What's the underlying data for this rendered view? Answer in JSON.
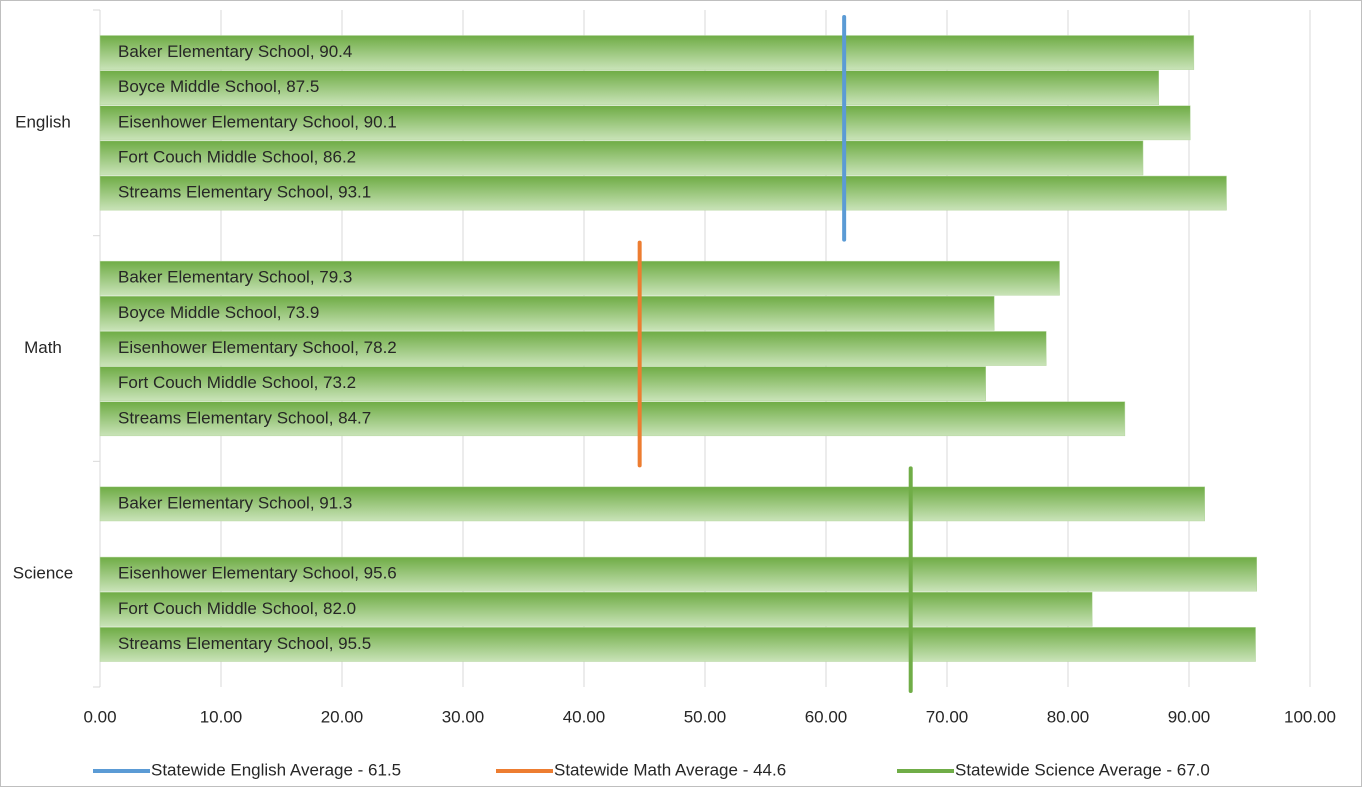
{
  "chart_data": {
    "type": "bar",
    "orientation": "horizontal",
    "categories": [
      "English",
      "Math",
      "Science"
    ],
    "series": [
      {
        "color": "#70ad47",
        "values": [
          90.4,
          79.3,
          91.3
        ],
        "value_labels": [
          "Baker Elementary School, 90.4",
          "Baker Elementary School, 79.3",
          "Baker Elementary School, 91.3"
        ]
      },
      {
        "color": "#70ad47",
        "values": [
          87.5,
          73.9,
          null
        ],
        "value_labels": [
          "Boyce Middle School, 87.5",
          "Boyce Middle School, 73.9",
          null
        ]
      },
      {
        "color": "#70ad47",
        "values": [
          90.1,
          78.2,
          95.6
        ],
        "value_labels": [
          "Eisenhower Elementary School, 90.1",
          "Eisenhower Elementary School, 78.2",
          "Eisenhower Elementary School, 95.6"
        ]
      },
      {
        "color": "#70ad47",
        "values": [
          86.2,
          73.2,
          82.0
        ],
        "value_labels": [
          "Fort Couch Middle School, 86.2",
          "Fort Couch Middle School, 73.2",
          "Fort Couch Middle School, 82.0"
        ]
      },
      {
        "color": "#70ad47",
        "values": [
          93.1,
          84.7,
          95.5
        ],
        "value_labels": [
          "Streams Elementary School, 93.1",
          "Streams Elementary School, 84.7",
          "Streams Elementary School, 95.5"
        ]
      }
    ],
    "reference_lines": [
      {
        "name": "Statewide English Average - 61.5",
        "value": 61.5,
        "color": "#5b9bd5"
      },
      {
        "name": "Statewide Math Average - 44.6",
        "value": 44.6,
        "color": "#ed7d31"
      },
      {
        "name": "Statewide Science Average - 67.0",
        "value": 67.0,
        "color": "#70ad47"
      }
    ],
    "xlim": [
      0,
      100
    ],
    "xticks": [
      {
        "value": 0,
        "label": "0.00"
      },
      {
        "value": 10,
        "label": "10.00"
      },
      {
        "value": 20,
        "label": "20.00"
      },
      {
        "value": 30,
        "label": "30.00"
      },
      {
        "value": 40,
        "label": "40.00"
      },
      {
        "value": 50,
        "label": "50.00"
      },
      {
        "value": 60,
        "label": "60.00"
      },
      {
        "value": 70,
        "label": "70.00"
      },
      {
        "value": 80,
        "label": "80.00"
      },
      {
        "value": 90,
        "label": "90.00"
      },
      {
        "value": 100,
        "label": "100.00"
      }
    ],
    "grid": true,
    "legend": "bottom"
  }
}
